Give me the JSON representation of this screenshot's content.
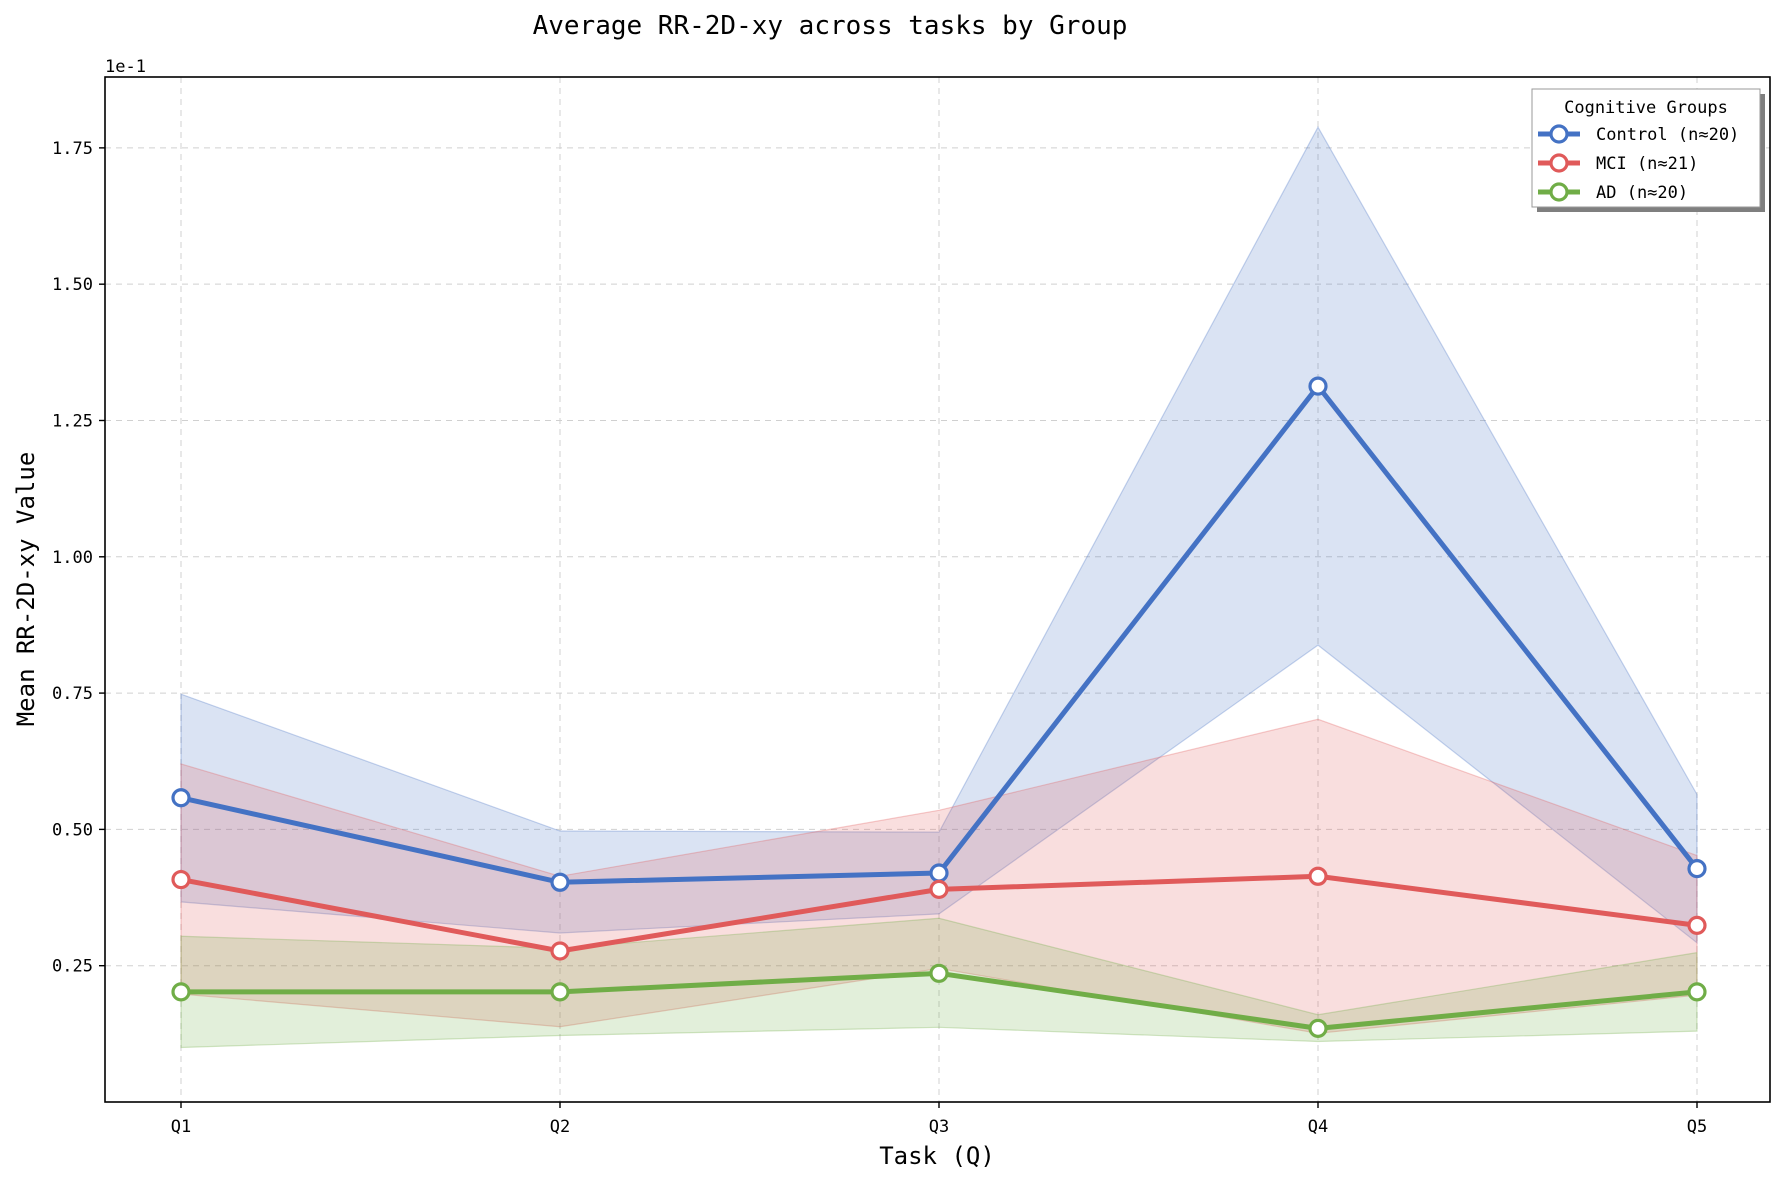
{
  "chart_data": {
    "type": "line",
    "title": "Average RR-2D-xy across tasks by Group",
    "xlabel": "Task (Q)",
    "ylabel": "Mean RR-2D-xy Value",
    "y_offset_label": "1e-1",
    "categories": [
      "Q1",
      "Q2",
      "Q3",
      "Q4",
      "Q5"
    ],
    "ylim": [
      0.0,
      0.188
    ],
    "yticks": [
      0.025,
      0.05,
      0.075,
      0.1,
      0.125,
      0.15,
      0.175
    ],
    "ytick_labels": [
      "0.25",
      "0.50",
      "0.75",
      "1.00",
      "1.25",
      "1.50",
      "1.75"
    ],
    "grid": true,
    "legend": {
      "title": "Cognitive Groups",
      "placement": "top-right"
    },
    "series": [
      {
        "name": "Control (n≈20)",
        "color": "#4472C4",
        "values": [
          0.0558,
          0.0403,
          0.042,
          0.1313,
          0.0428
        ],
        "lower": [
          0.0367,
          0.031,
          0.0345,
          0.0838,
          0.0292
        ],
        "upper": [
          0.0748,
          0.0497,
          0.0495,
          0.1788,
          0.0564
        ]
      },
      {
        "name": "MCI (n≈21)",
        "color": "#E05A5A",
        "values": [
          0.0408,
          0.0277,
          0.039,
          0.0414,
          0.0324
        ],
        "lower": [
          0.0198,
          0.0138,
          0.0245,
          0.0126,
          0.0196
        ],
        "upper": [
          0.062,
          0.0414,
          0.0535,
          0.0702,
          0.0452
        ]
      },
      {
        "name": "AD (n≈20)",
        "color": "#70AD47",
        "values": [
          0.0202,
          0.0202,
          0.0236,
          0.0135,
          0.0202
        ],
        "lower": [
          0.01,
          0.0122,
          0.0137,
          0.0111,
          0.013
        ],
        "upper": [
          0.0304,
          0.0282,
          0.0337,
          0.016,
          0.0274
        ]
      }
    ]
  }
}
